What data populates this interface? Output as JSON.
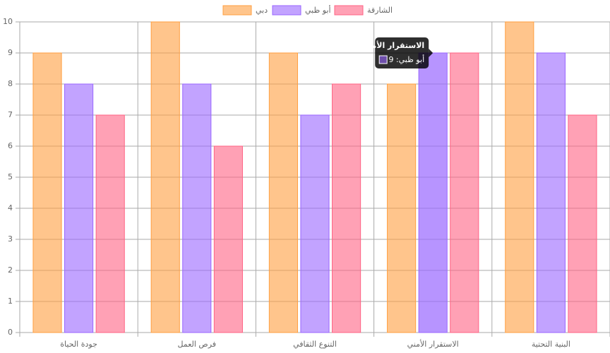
{
  "chart_data": {
    "type": "bar",
    "categories": [
      "جودة الحياة",
      "فرص العمل",
      "التنوع الثقافي",
      "الاستقرار الأمني",
      "البنية التحتية"
    ],
    "series": [
      {
        "name": "دبي",
        "color": "#ff9f40",
        "values": [
          9,
          10,
          9,
          8,
          10
        ]
      },
      {
        "name": "أبو ظبي",
        "color": "#9966ff",
        "values": [
          8,
          8,
          7,
          9,
          9
        ]
      },
      {
        "name": "الشارقة",
        "color": "#ff6384",
        "values": [
          7,
          6,
          8,
          9,
          7
        ]
      }
    ],
    "ylim": [
      0,
      10
    ],
    "yticks": [
      0,
      1,
      2,
      3,
      4,
      5,
      6,
      7,
      8,
      9,
      10
    ],
    "grid": true,
    "legend": "top",
    "tooltip": {
      "title": "الاستقرار الأمني",
      "body": "أبو ظبي: 9"
    }
  }
}
